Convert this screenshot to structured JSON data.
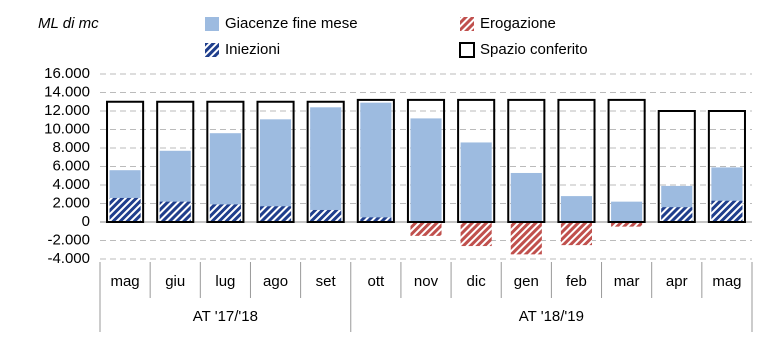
{
  "chart_data": {
    "type": "bar",
    "y_axis_title": "ML di mc",
    "categories": [
      "mag",
      "giu",
      "lug",
      "ago",
      "set",
      "ott",
      "nov",
      "dic",
      "gen",
      "feb",
      "mar",
      "apr",
      "mag"
    ],
    "category_groups": [
      "AT '17/'18",
      "AT '17/'18",
      "AT '17/'18",
      "AT '17/'18",
      "AT '17/'18",
      "AT '18/'19",
      "AT '18/'19",
      "AT '18/'19",
      "AT '18/'19",
      "AT '18/'19",
      "AT '18/'19",
      "AT '18/'19",
      "AT '18/'19"
    ],
    "series": [
      {
        "name": "Giacenze fine mese",
        "color": "#9dbbe0",
        "style": "solid",
        "values": [
          5600,
          7700,
          9600,
          11100,
          12400,
          12900,
          11200,
          8600,
          5300,
          2800,
          2200,
          3900,
          5900
        ]
      },
      {
        "name": "Erogazione",
        "color": "#c0504d",
        "style": "hatch",
        "values": [
          0,
          0,
          0,
          0,
          0,
          0,
          -1500,
          -2600,
          -3500,
          -2500,
          -500,
          0,
          0
        ]
      },
      {
        "name": "Iniezioni",
        "color": "#1f3e8c",
        "style": "hatch",
        "values": [
          2600,
          2200,
          1900,
          1700,
          1300,
          500,
          0,
          0,
          0,
          0,
          0,
          1600,
          2300
        ]
      },
      {
        "name": "Spazio conferito",
        "color": "#000000",
        "style": "outline",
        "values": [
          13000,
          13000,
          13000,
          13000,
          13000,
          13200,
          13200,
          13200,
          13200,
          13200,
          13200,
          12000,
          12000
        ]
      }
    ],
    "ylim": [
      -4000,
      16000
    ],
    "yticks": [
      {
        "value": -4000,
        "label": "-4.000"
      },
      {
        "value": -2000,
        "label": "-2.000"
      },
      0,
      {
        "value": 2000,
        "label": "2.000"
      },
      {
        "value": 4000,
        "label": "4.000"
      },
      {
        "value": 6000,
        "label": "6.000"
      },
      {
        "value": 8000,
        "label": "8.000"
      },
      {
        "value": 10000,
        "label": "10.000"
      },
      {
        "value": 12000,
        "label": "12.000"
      },
      {
        "value": 14000,
        "label": "14.000"
      },
      {
        "value": 16000,
        "label": "16.000"
      }
    ],
    "grid": true
  }
}
